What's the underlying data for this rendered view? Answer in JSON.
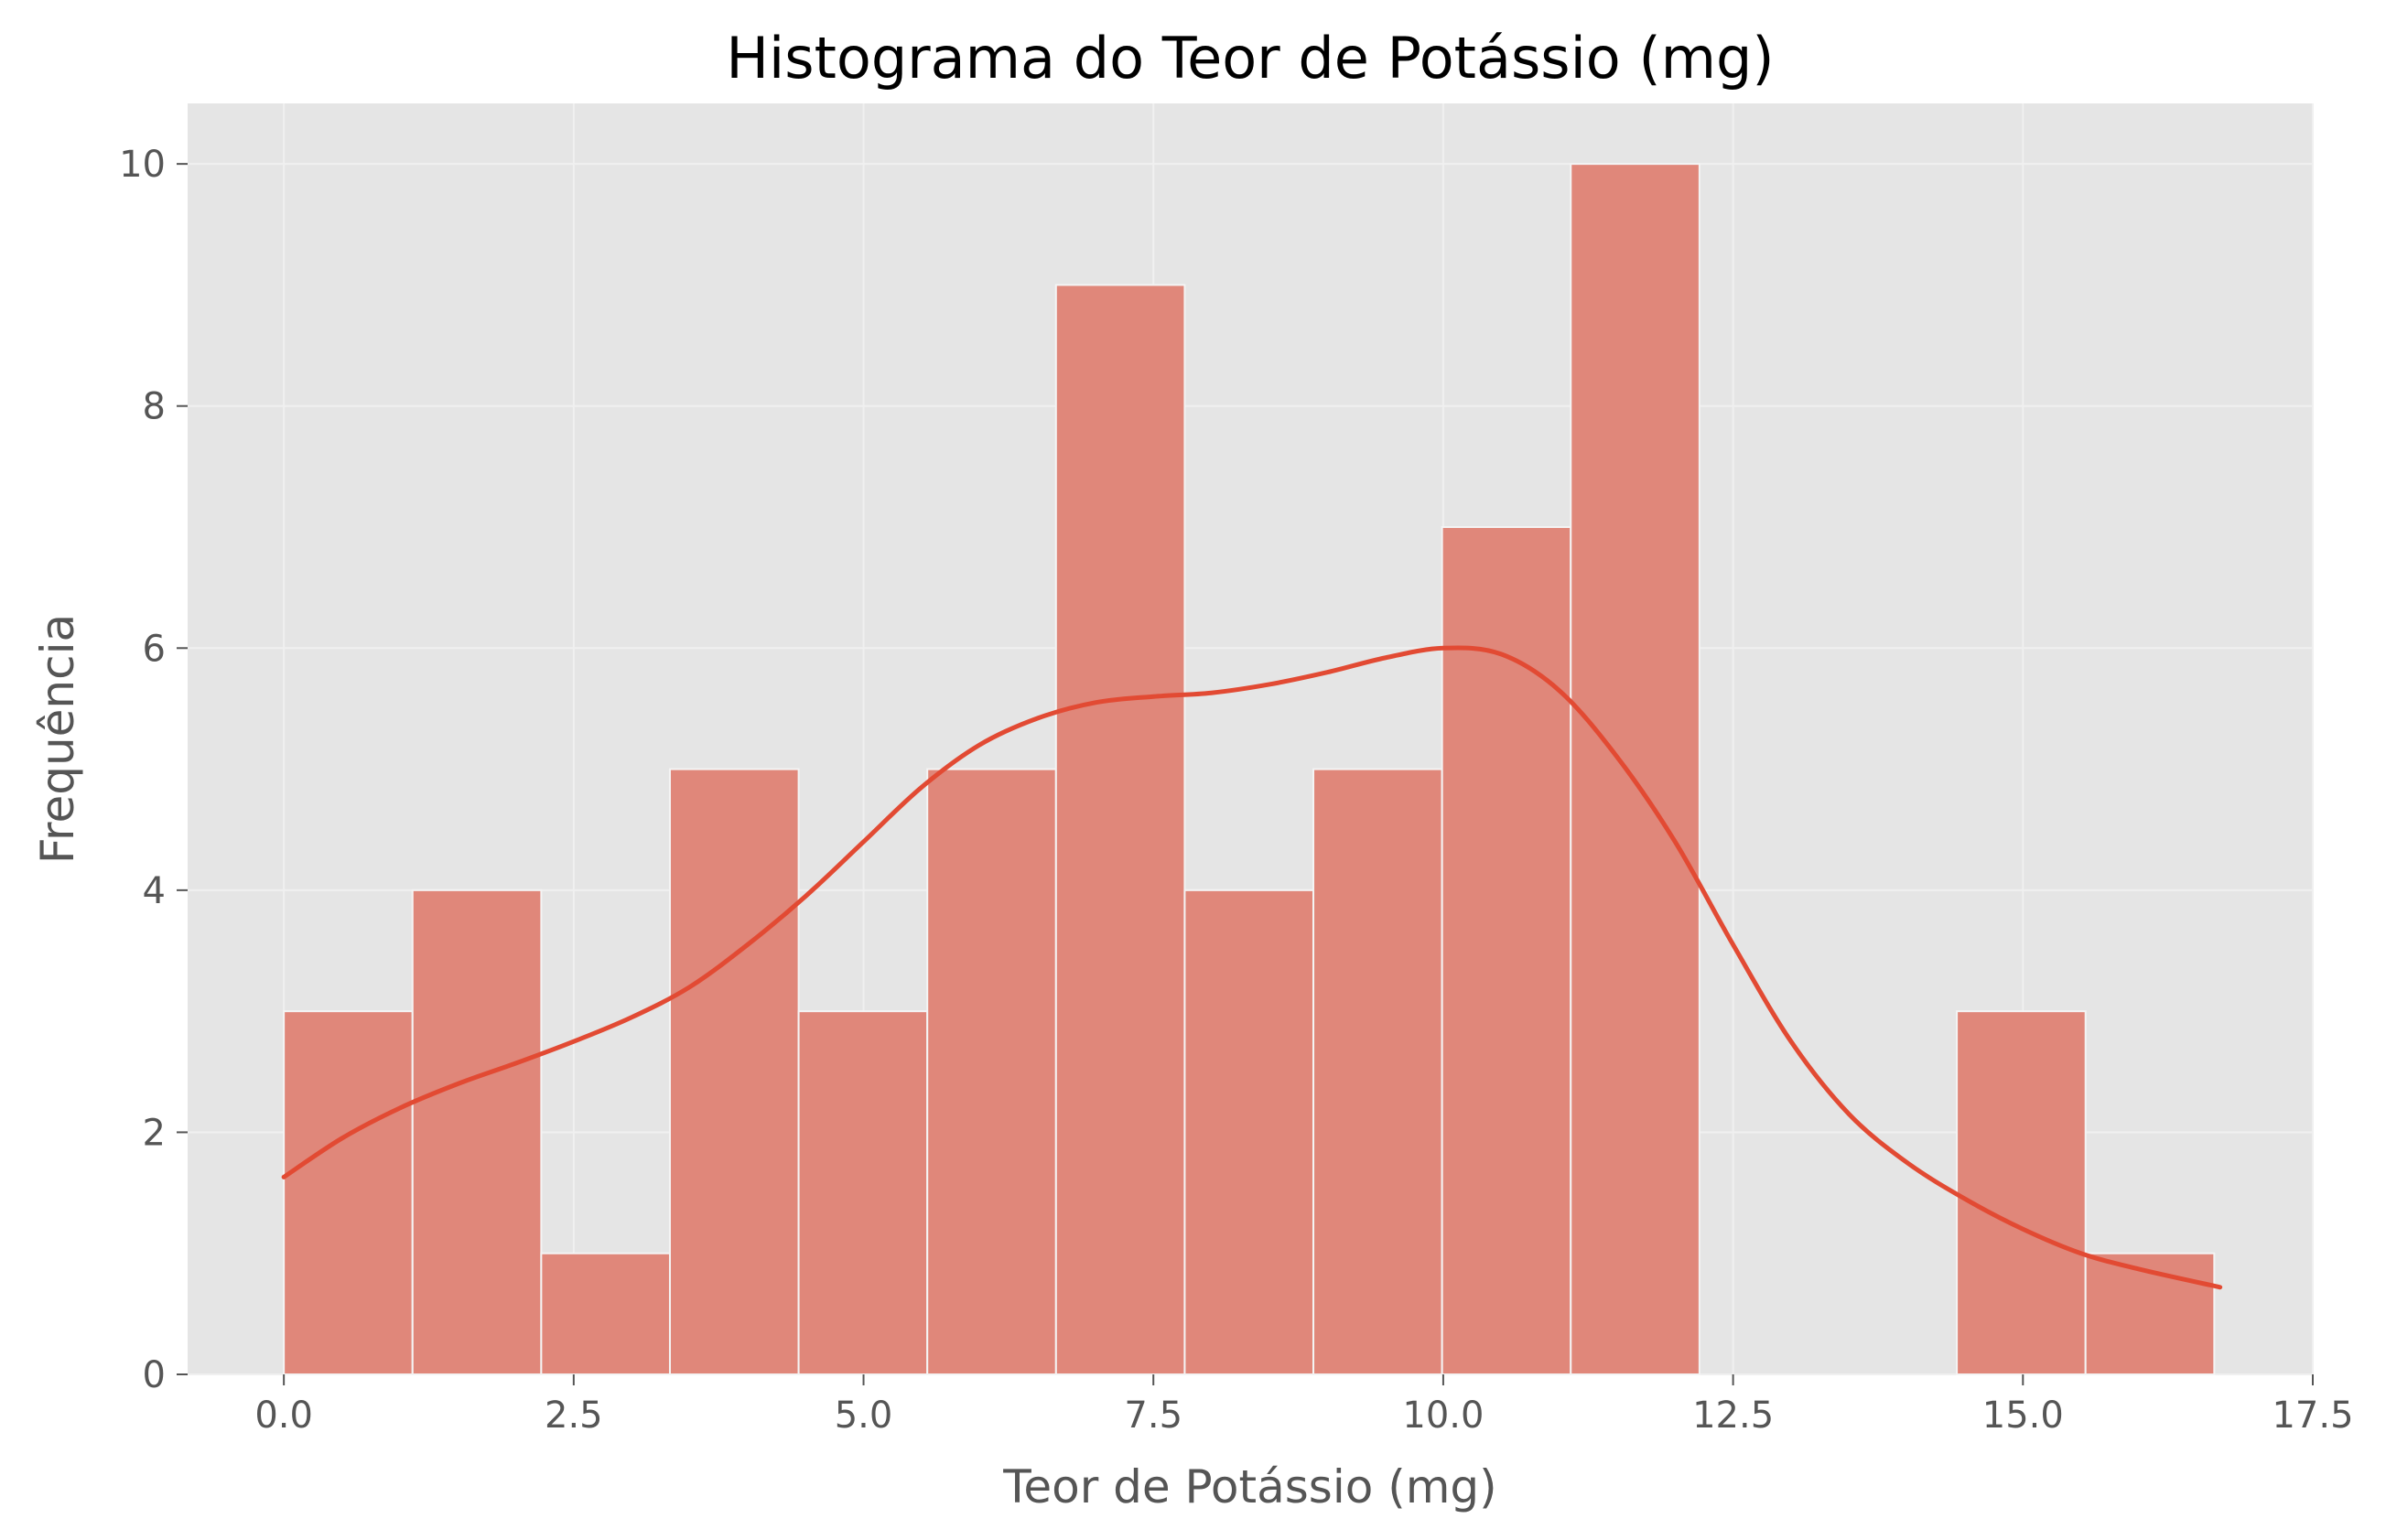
{
  "chart_data": {
    "type": "bar",
    "title": "Histograma do Teor de Potássio (mg)",
    "xlabel": "Teor de Potássio (mg)",
    "ylabel": "Frequência",
    "xlim": [
      -0.83,
      17.5
    ],
    "ylim": [
      0,
      10.5
    ],
    "xticks": [
      0.0,
      2.5,
      5.0,
      7.5,
      10.0,
      12.5,
      15.0,
      17.5
    ],
    "xtick_labels": [
      "0.0",
      "2.5",
      "5.0",
      "7.5",
      "10.0",
      "12.5",
      "15.0",
      "17.5"
    ],
    "yticks": [
      0,
      2,
      4,
      6,
      8,
      10
    ],
    "ytick_labels": [
      "0",
      "2",
      "4",
      "6",
      "8",
      "10"
    ],
    "grid": true,
    "bin_edges": [
      0.0,
      1.11,
      2.22,
      3.33,
      4.44,
      5.55,
      6.66,
      7.77,
      8.88,
      9.99,
      11.1,
      12.21,
      13.32,
      14.43,
      15.54,
      16.65
    ],
    "counts": [
      3,
      4,
      1,
      5,
      3,
      5,
      9,
      4,
      5,
      7,
      10,
      0,
      0,
      3,
      1
    ],
    "kde": {
      "x": [
        0.0,
        0.5,
        1.0,
        1.5,
        2.0,
        2.5,
        3.0,
        3.5,
        4.0,
        4.5,
        5.0,
        5.5,
        6.0,
        6.5,
        7.0,
        7.5,
        8.0,
        8.5,
        9.0,
        9.5,
        10.0,
        10.5,
        11.0,
        11.5,
        12.0,
        12.5,
        13.0,
        13.5,
        14.0,
        14.5,
        15.0,
        15.5,
        16.0,
        16.7
      ],
      "y": [
        1.63,
        1.95,
        2.2,
        2.4,
        2.57,
        2.75,
        2.95,
        3.2,
        3.55,
        3.95,
        4.4,
        4.85,
        5.2,
        5.42,
        5.55,
        5.6,
        5.63,
        5.7,
        5.8,
        5.92,
        6.0,
        5.95,
        5.65,
        5.1,
        4.4,
        3.55,
        2.75,
        2.15,
        1.75,
        1.45,
        1.2,
        1.0,
        0.87,
        0.72
      ]
    },
    "colors": {
      "bar_fill": "#e0877a",
      "bar_edge": "#f4f4f4",
      "kde_line": "#e24a33",
      "plot_background": "#e5e5e5",
      "grid": "#f0f0f0"
    }
  }
}
